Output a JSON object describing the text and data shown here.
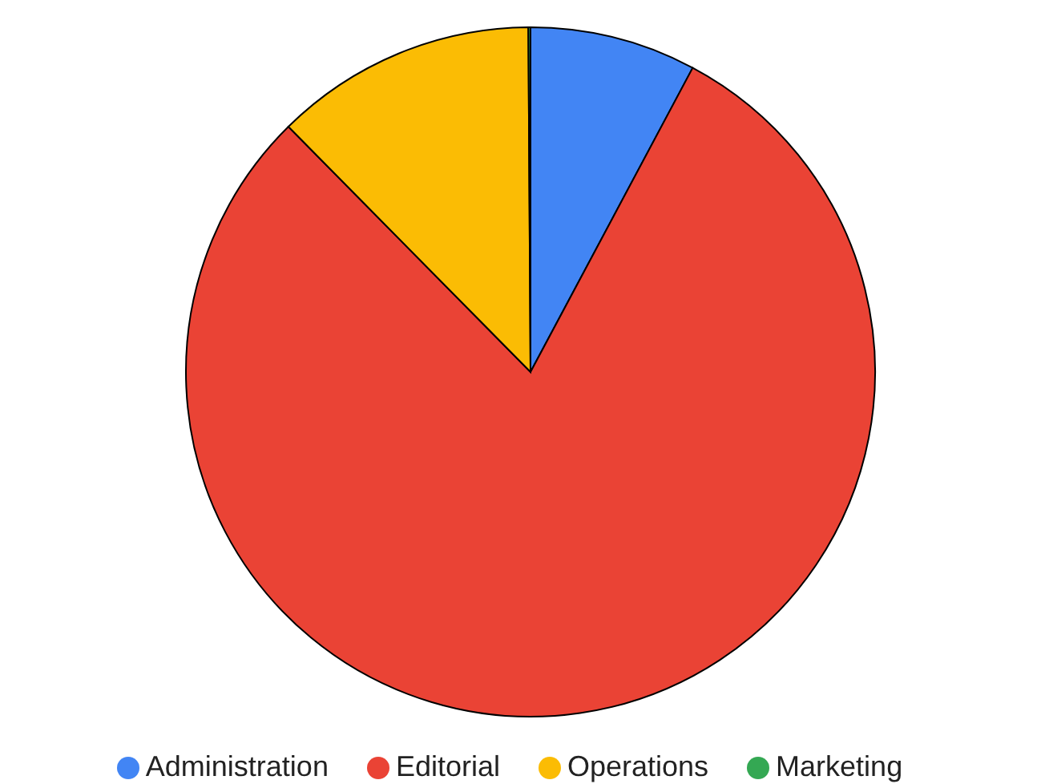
{
  "chart_data": {
    "type": "pie",
    "categories": [
      "Administration",
      "Editorial",
      "Operations",
      "Marketing"
    ],
    "values": [
      7.8,
      79.8,
      12.3,
      0.1
    ],
    "colors": [
      "#4285f4",
      "#ea4335",
      "#fbbc04",
      "#34a853"
    ],
    "legend": "bottom"
  }
}
